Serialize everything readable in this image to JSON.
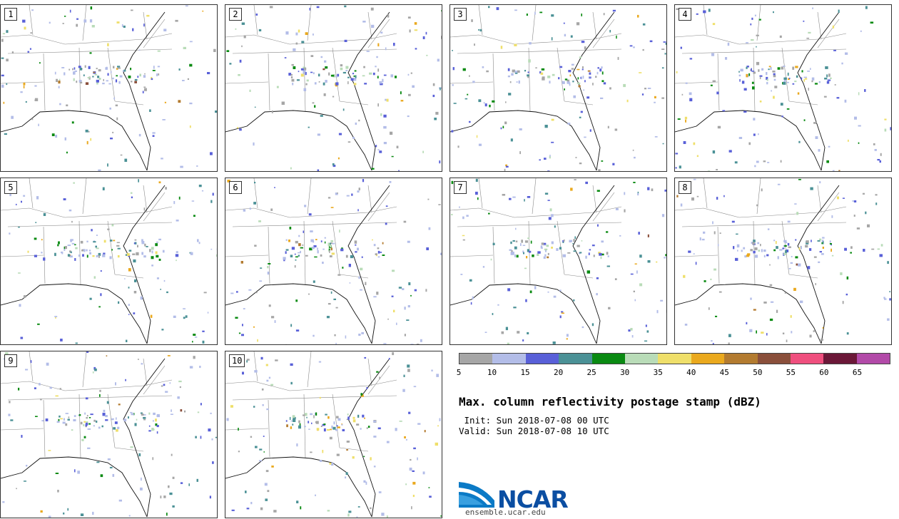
{
  "panels": [
    {
      "label": "1"
    },
    {
      "label": "2"
    },
    {
      "label": "3"
    },
    {
      "label": "4"
    },
    {
      "label": "5"
    },
    {
      "label": "6"
    },
    {
      "label": "7"
    },
    {
      "label": "8"
    },
    {
      "label": "9"
    },
    {
      "label": "10"
    }
  ],
  "colorbar": {
    "colors": [
      "#a6a6a6",
      "#b3bde8",
      "#5960d8",
      "#4b9196",
      "#0a8a12",
      "#b9dcb8",
      "#efdf6a",
      "#eaa91e",
      "#b37b30",
      "#8a4f3b",
      "#ef4f7e",
      "#6b1838",
      "#b24aa8"
    ],
    "ticks": [
      "5",
      "10",
      "15",
      "20",
      "25",
      "30",
      "35",
      "40",
      "45",
      "50",
      "55",
      "60",
      "65"
    ]
  },
  "title": "Max. column reflectivity postage stamp (dBZ)",
  "init_line": " Init: Sun 2018-07-08 00 UTC",
  "valid_line": "Valid: Sun 2018-07-08 10 UTC",
  "logo": {
    "word": "NCAR",
    "url": "ensemble.ucar.edu"
  }
}
